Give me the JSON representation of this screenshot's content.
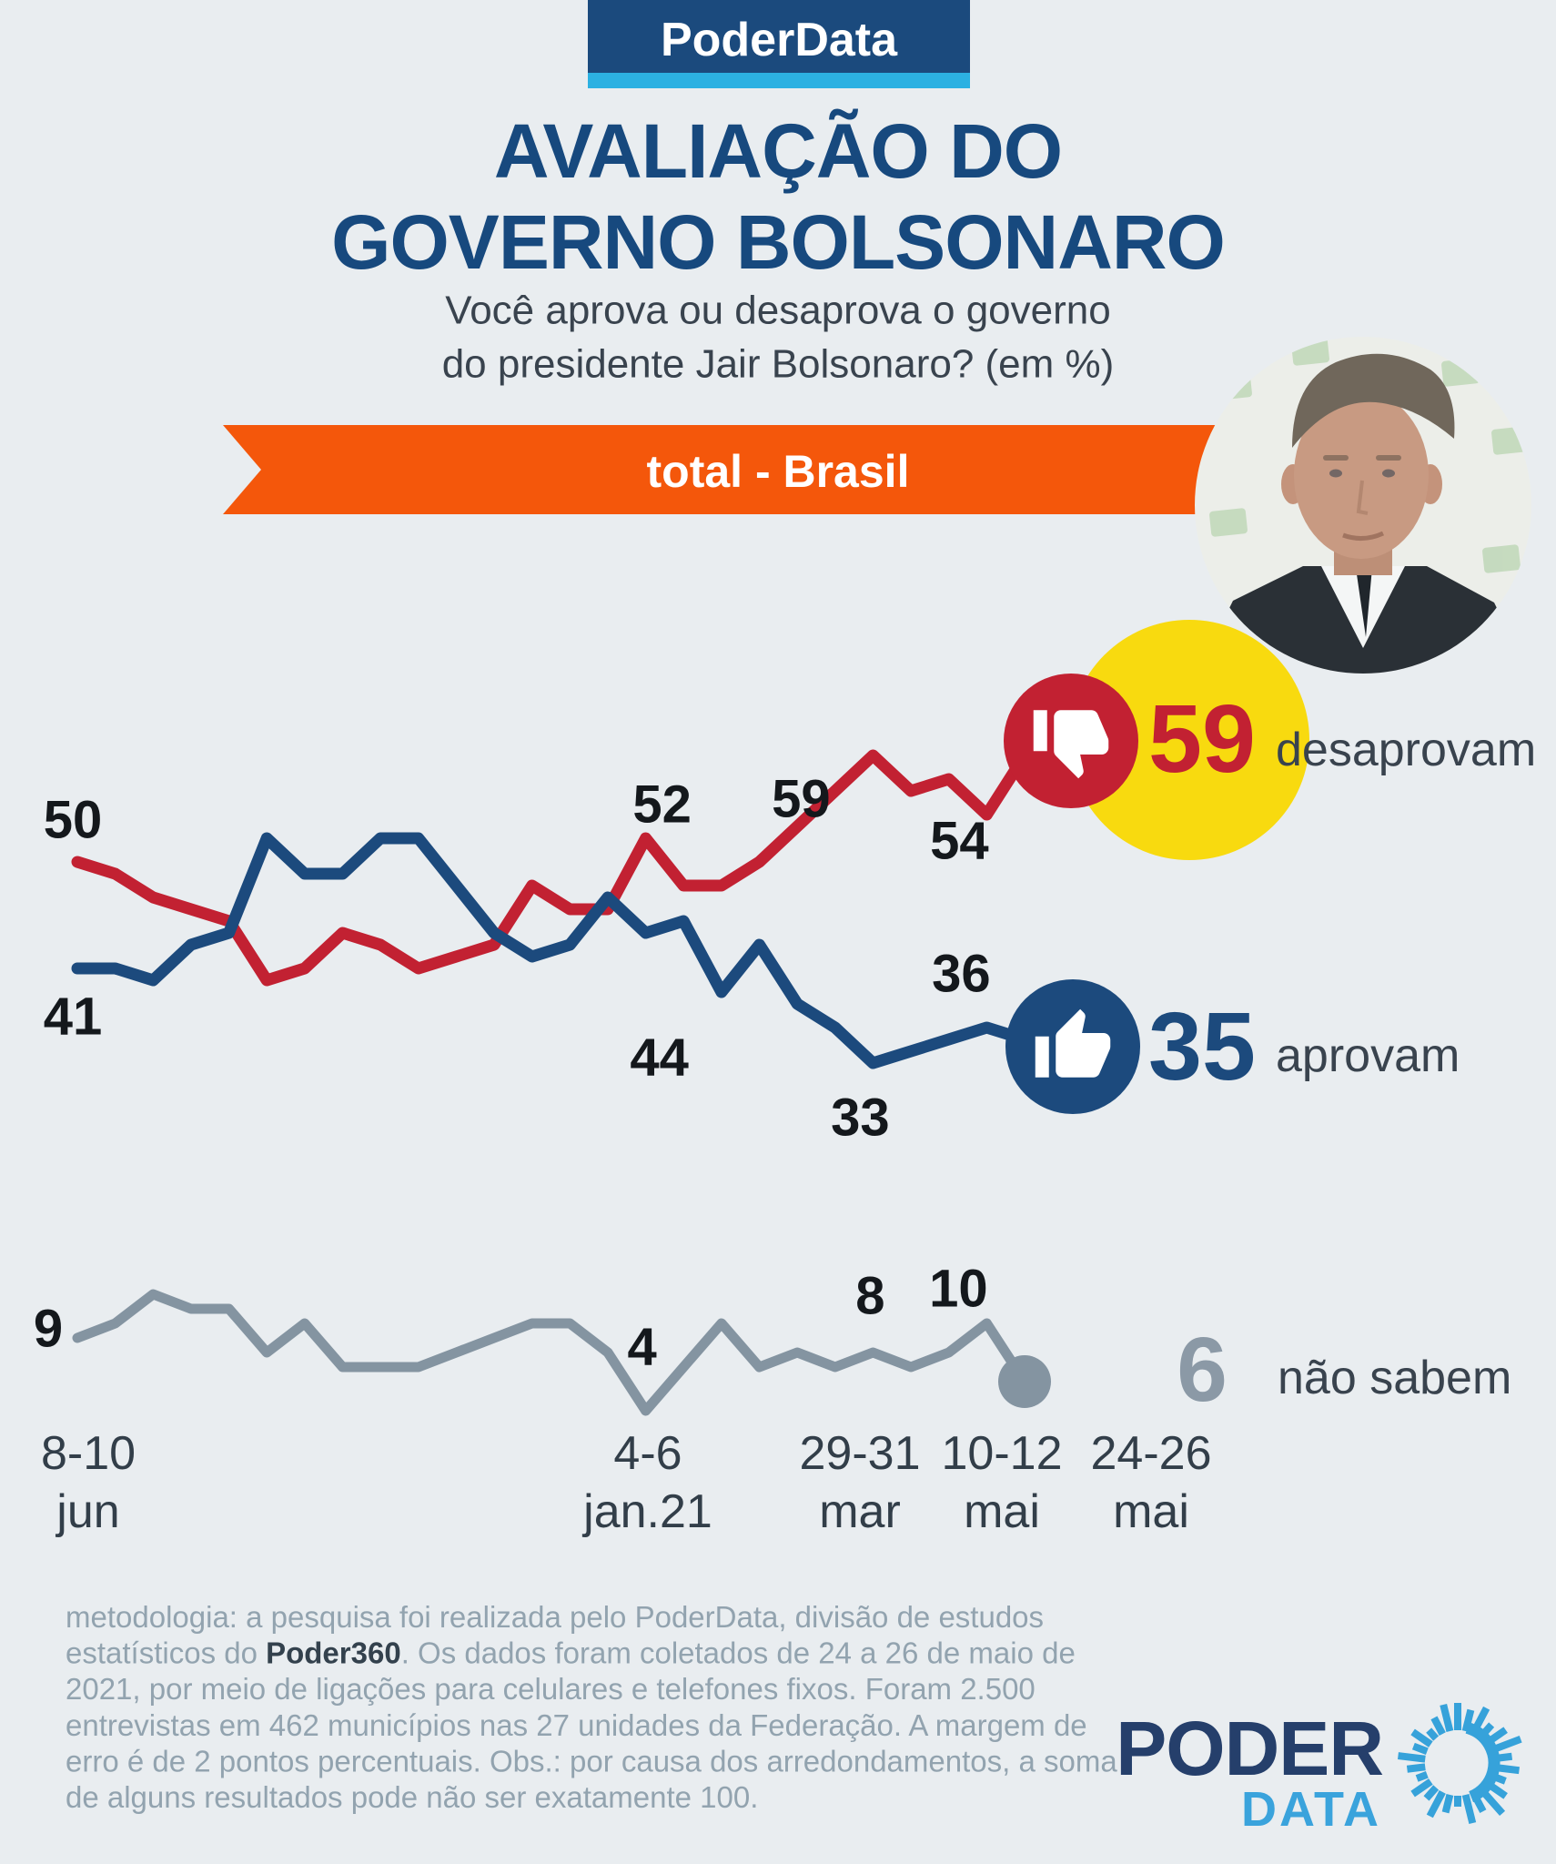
{
  "page": {
    "background": "#e9edf0"
  },
  "header": {
    "brand_badge": {
      "label": "PoderData",
      "bg": "#1b4a7d",
      "underline_color": "#2cb1e2"
    },
    "title_line1": "AVALIAÇÃO DO",
    "title_line2": "GOVERNO BOLSONARO",
    "subtitle_line1": "Você aprova ou desaprova o governo",
    "subtitle_line2": "do presidente Jair Bolsonaro?  (em %)",
    "scope_ribbon": {
      "label": "total - Brasil",
      "bg": "#f4570b"
    },
    "photo": {
      "alt": "foto de Jair Bolsonaro"
    }
  },
  "chart_data": {
    "type": "line",
    "title": "Avaliação do governo Bolsonaro",
    "unit": "%",
    "x_ticks": [
      {
        "line1": "8-10",
        "line2": "jun"
      },
      {
        "line1": "4-6",
        "line2": "jan.21"
      },
      {
        "line1": "29-31",
        "line2": "mar"
      },
      {
        "line1": "10-12",
        "line2": "mai"
      },
      {
        "line1": "24-26",
        "line2": "mai"
      }
    ],
    "x_tick_point_index": [
      0,
      15,
      21,
      24,
      25
    ],
    "series": [
      {
        "key": "desaprovam",
        "name": "desaprovam",
        "color": "#c22132",
        "values": [
          50,
          49,
          47,
          46,
          45,
          40,
          41,
          44,
          43,
          41,
          42,
          43,
          48,
          46,
          46,
          52,
          48,
          48,
          50,
          53,
          56,
          59,
          56,
          57,
          54,
          59
        ]
      },
      {
        "key": "aprovam",
        "name": "aprovam",
        "color": "#1c4a7d",
        "values": [
          41,
          41,
          40,
          43,
          44,
          52,
          49,
          49,
          52,
          52,
          48,
          44,
          42,
          43,
          47,
          44,
          45,
          39,
          43,
          38,
          36,
          33,
          34,
          35,
          36,
          35
        ]
      },
      {
        "key": "nao_sabem",
        "name": "não sabem",
        "color": "#8494a1",
        "values": [
          9,
          10,
          12,
          11,
          11,
          8,
          10,
          7,
          7,
          7,
          8,
          9,
          10,
          10,
          8,
          4,
          7,
          10,
          7,
          8,
          7,
          8,
          7,
          8,
          10,
          6
        ]
      }
    ],
    "point_labels": [
      {
        "series": "desaprovam",
        "index": 0,
        "text": "50"
      },
      {
        "series": "aprovam",
        "index": 0,
        "text": "41"
      },
      {
        "series": "nao_sabem",
        "index": 0,
        "text": "9"
      },
      {
        "series": "desaprovam",
        "index": 15,
        "text": "52"
      },
      {
        "series": "aprovam",
        "index": 15,
        "text": "44"
      },
      {
        "series": "nao_sabem",
        "index": 15,
        "text": "4"
      },
      {
        "series": "desaprovam",
        "index": 21,
        "text": "59"
      },
      {
        "series": "aprovam",
        "index": 21,
        "text": "33"
      },
      {
        "series": "nao_sabem",
        "index": 21,
        "text": "8"
      },
      {
        "series": "desaprovam",
        "index": 24,
        "text": "54"
      },
      {
        "series": "aprovam",
        "index": 24,
        "text": "36"
      },
      {
        "series": "nao_sabem",
        "index": 24,
        "text": "10"
      }
    ],
    "end_callouts": [
      {
        "series": "desaprovam",
        "value": "59",
        "label": "desaprovam",
        "icon": "thumbs-down",
        "badge_color": "#c22132",
        "number_color": "#c22132",
        "highlight_color": "#f8da0f"
      },
      {
        "series": "aprovam",
        "value": "35",
        "label": "aprovam",
        "icon": "thumbs-up",
        "badge_color": "#1c4a7d",
        "number_color": "#1c4a7d"
      },
      {
        "series": "nao_sabem",
        "value": "6",
        "label": "não sabem",
        "icon": "dot",
        "number_color": "#8b99a6"
      }
    ]
  },
  "footer": {
    "methodology_lines": [
      [
        {
          "t": "metodologia: a pesquisa foi realizada pelo PoderData, divisão de estudos"
        }
      ],
      [
        {
          "t": "estatísticos do "
        },
        {
          "t": "Poder360",
          "b": true
        },
        {
          "t": ". Os dados foram coletados de 24 a 26 de maio de"
        }
      ],
      [
        {
          "t": "2021, por meio de ligações para celulares e telefones fixos. Foram 2.500"
        }
      ],
      [
        {
          "t": "entrevistas em 462 municípios nas 27 unidades da Federação. A margem de"
        }
      ],
      [
        {
          "t": "erro é de 2 pontos percentuais. Obs.: por causa dos arredondamentos, a soma"
        }
      ],
      [
        {
          "t": "de alguns resultados pode não ser exatamente 100."
        }
      ]
    ],
    "logo": {
      "line1": "PODER",
      "line2": "DATA",
      "color1": "#253f6b",
      "color2": "#3aa3dc"
    }
  }
}
